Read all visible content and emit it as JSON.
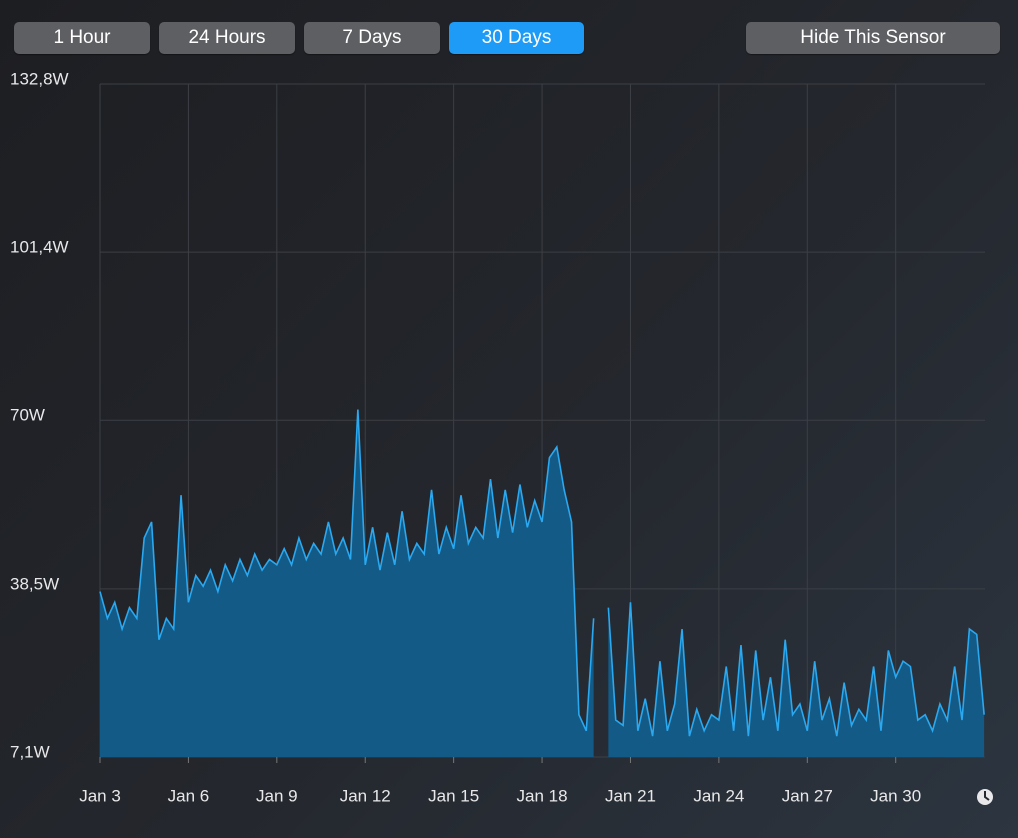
{
  "controls": {
    "ranges": [
      "1 Hour",
      "24 Hours",
      "7 Days",
      "30 Days"
    ],
    "hide": "Hide This Sensor"
  },
  "chart_data": {
    "type": "area",
    "x": [
      3,
      3.25,
      3.5,
      3.75,
      4,
      4.25,
      4.5,
      4.75,
      5,
      5.25,
      5.5,
      5.75,
      6,
      6.25,
      6.5,
      6.75,
      7,
      7.25,
      7.5,
      7.75,
      8,
      8.25,
      8.5,
      8.75,
      9,
      9.25,
      9.5,
      9.75,
      10,
      10.25,
      10.5,
      10.75,
      11,
      11.25,
      11.5,
      11.75,
      12,
      12.25,
      12.5,
      12.75,
      13,
      13.25,
      13.5,
      13.75,
      14,
      14.25,
      14.5,
      14.75,
      15,
      15.25,
      15.5,
      15.75,
      16,
      16.25,
      16.5,
      16.75,
      17,
      17.25,
      17.5,
      17.75,
      18,
      18.25,
      18.5,
      18.75,
      19,
      19.25,
      19.5,
      19.75,
      20,
      20.25,
      20.5,
      20.75,
      21,
      21.25,
      21.5,
      21.75,
      22,
      22.25,
      22.5,
      22.75,
      23,
      23.25,
      23.5,
      23.75,
      24,
      24.25,
      24.5,
      24.75,
      25,
      25.25,
      25.5,
      25.75,
      26,
      26.25,
      26.5,
      26.75,
      27,
      27.25,
      27.5,
      27.75,
      28,
      28.25,
      28.5,
      28.75,
      29,
      29.25,
      29.5,
      29.75,
      30,
      30.25,
      30.5,
      30.75,
      31,
      31.25,
      31.5,
      31.75,
      32,
      32.25,
      32.5,
      32.75,
      33
    ],
    "series": [
      {
        "color": "#2aa8f0",
        "values": [
          38,
          33,
          36,
          31,
          35,
          33,
          48,
          51,
          29,
          33,
          31,
          56,
          36,
          41,
          39,
          42,
          38,
          43,
          40,
          44,
          41,
          45,
          42,
          44,
          43,
          46,
          43,
          48,
          44,
          47,
          45,
          51,
          45,
          48,
          44,
          72,
          43,
          50,
          42,
          49,
          43,
          53,
          44,
          47,
          45,
          57,
          45,
          50,
          46,
          56,
          47,
          50,
          48,
          59,
          48,
          57,
          49,
          58,
          50,
          55,
          51,
          63,
          65,
          57,
          51,
          15,
          12,
          33,
          null,
          35,
          14,
          13,
          36,
          12,
          18,
          11,
          25,
          12,
          17,
          31,
          11,
          16,
          12,
          15,
          14,
          24,
          12,
          28,
          11,
          27,
          14,
          22,
          12,
          29,
          15,
          17,
          12,
          25,
          14,
          18,
          11,
          21,
          13,
          16,
          14,
          24,
          12,
          27,
          22,
          25,
          24,
          14,
          15,
          12,
          17,
          14,
          24,
          14,
          31,
          30,
          15
        ]
      }
    ],
    "xlim": [
      3,
      33.03
    ],
    "xticks": [
      {
        "value": 3,
        "label": "Jan 3"
      },
      {
        "value": 6,
        "label": "Jan 6"
      },
      {
        "value": 9,
        "label": "Jan 9"
      },
      {
        "value": 12,
        "label": "Jan 12"
      },
      {
        "value": 15,
        "label": "Jan 15"
      },
      {
        "value": 18,
        "label": "Jan 18"
      },
      {
        "value": 21,
        "label": "Jan 21"
      },
      {
        "value": 24,
        "label": "Jan 24"
      },
      {
        "value": 27,
        "label": "Jan 27"
      },
      {
        "value": 30,
        "label": "Jan 30"
      }
    ],
    "ylim": [
      7.1,
      132.8
    ],
    "yticks": [
      {
        "value": 7.1,
        "label": "7,1W"
      },
      {
        "value": 38.5,
        "label": "38,5W"
      },
      {
        "value": 70,
        "label": "70W"
      },
      {
        "value": 101.4,
        "label": "101,4W"
      },
      {
        "value": 132.8,
        "label": "132,8W"
      }
    ],
    "grid": true
  }
}
